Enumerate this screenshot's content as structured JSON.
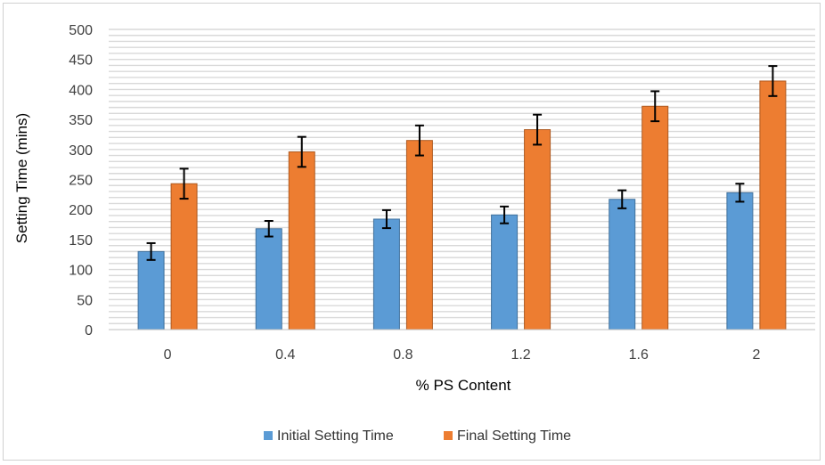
{
  "colors": {
    "initial": "#5B9BD5",
    "final": "#ED7D31",
    "grid": "#d9d9d9",
    "error_bar": "#000000"
  },
  "chart_data": {
    "type": "bar",
    "title": "",
    "xlabel": "% PS Content",
    "ylabel": "Setting Time (mins)",
    "categories": [
      "0",
      "0.4",
      "0.8",
      "1.2",
      "1.6",
      "2"
    ],
    "ylim": [
      0,
      500
    ],
    "yticks": [
      "0",
      "50",
      "100",
      "150",
      "200",
      "250",
      "300",
      "350",
      "400",
      "450",
      "500"
    ],
    "grid": true,
    "legend_position": "bottom",
    "series": [
      {
        "name": "Initial Setting Time",
        "values": [
          130,
          168,
          184,
          191,
          217,
          228
        ],
        "errors": [
          14,
          13,
          15,
          14,
          15,
          15
        ]
      },
      {
        "name": "Final Setting Time",
        "values": [
          243,
          296,
          315,
          333,
          372,
          414
        ],
        "errors": [
          25,
          25,
          25,
          25,
          25,
          25
        ]
      }
    ]
  }
}
